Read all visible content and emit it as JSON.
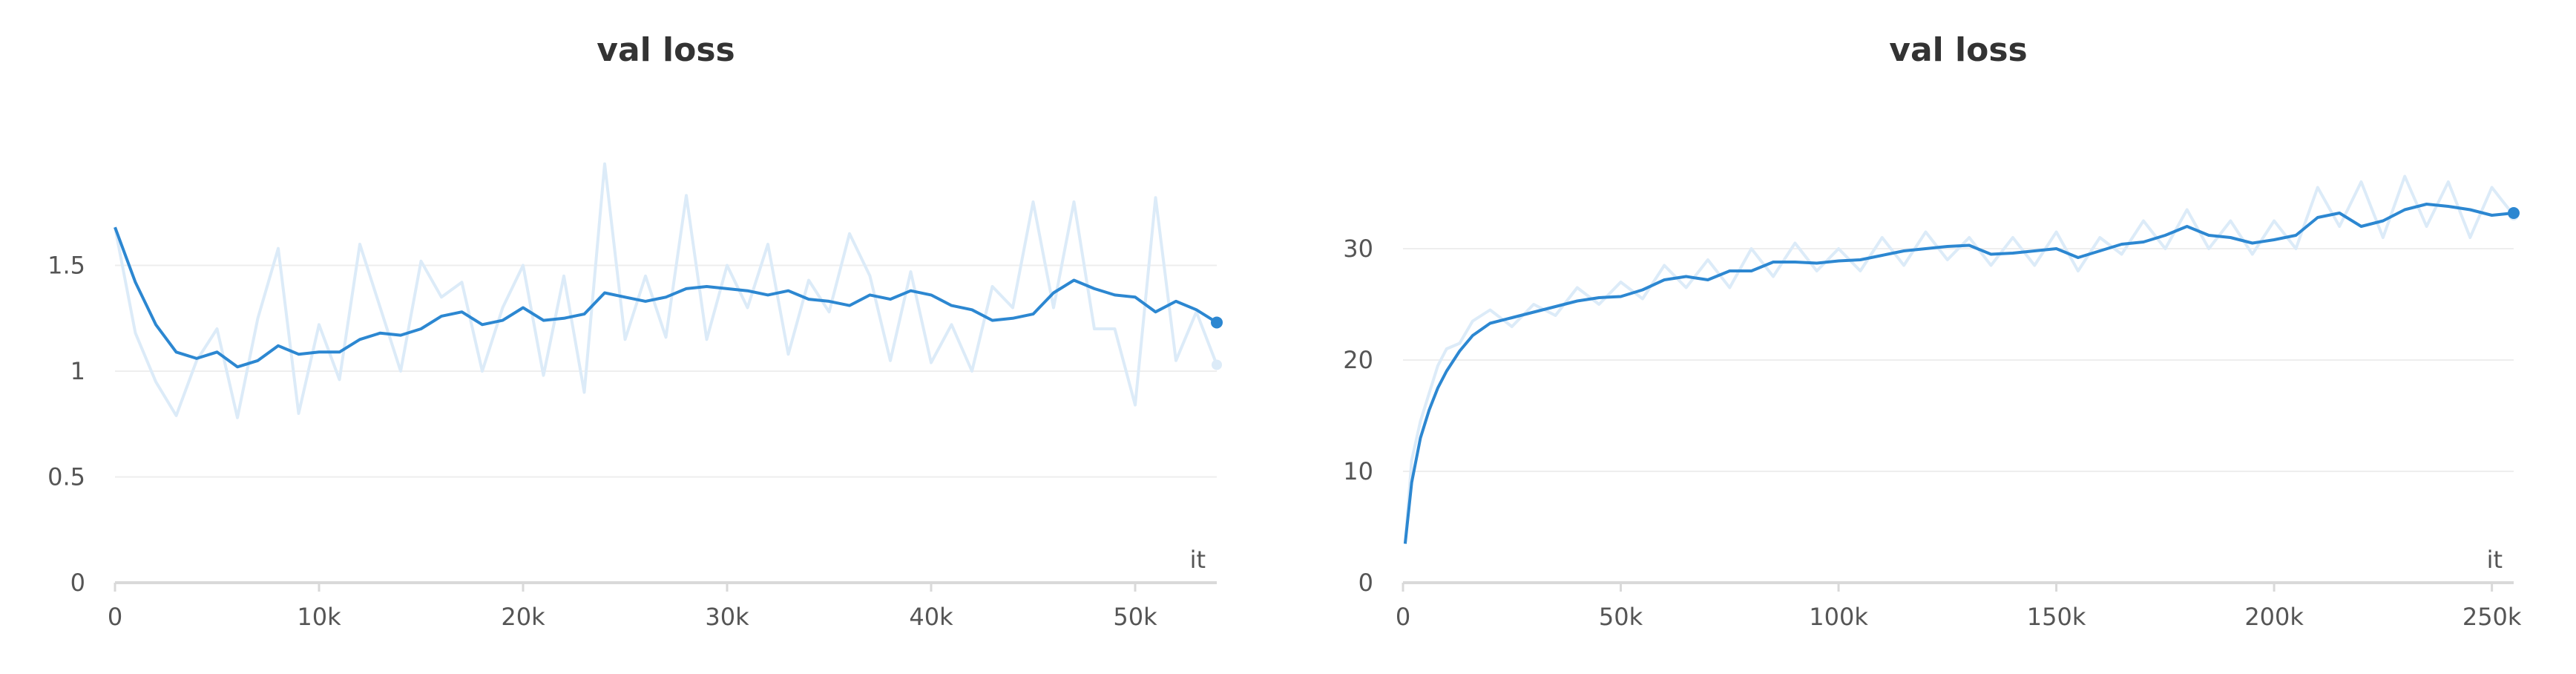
{
  "colors": {
    "line": "#2c87d1",
    "raw": "#dcebf8",
    "grid": "#eeeeee",
    "axis": "#d9d9d9",
    "text": "#555555",
    "title": "#333333"
  },
  "chart_data": [
    {
      "type": "line",
      "title": "val loss",
      "xlabel": "it",
      "ylabel": "",
      "xlim": [
        0,
        54000
      ],
      "ylim": [
        0,
        2.0
      ],
      "xticks": [
        0,
        10000,
        20000,
        30000,
        40000,
        50000
      ],
      "xtick_labels": [
        "0",
        "10k",
        "20k",
        "30k",
        "40k",
        "50k"
      ],
      "yticks": [
        0,
        0.5,
        1,
        1.5
      ],
      "ytick_labels": [
        "0",
        "0.5",
        "1",
        "1.5"
      ],
      "grid": true,
      "series": [
        {
          "role": "smoothed",
          "x": [
            0,
            1000,
            2000,
            3000,
            4000,
            5000,
            6000,
            7000,
            8000,
            9000,
            10000,
            11000,
            12000,
            13000,
            14000,
            15000,
            16000,
            17000,
            18000,
            19000,
            20000,
            21000,
            22000,
            23000,
            24000,
            25000,
            26000,
            27000,
            28000,
            29000,
            30000,
            31000,
            32000,
            33000,
            34000,
            35000,
            36000,
            37000,
            38000,
            39000,
            40000,
            41000,
            42000,
            43000,
            44000,
            45000,
            46000,
            47000,
            48000,
            49000,
            50000,
            51000,
            52000,
            53000,
            54000
          ],
          "y": [
            1.68,
            1.42,
            1.22,
            1.09,
            1.06,
            1.09,
            1.02,
            1.05,
            1.12,
            1.08,
            1.09,
            1.09,
            1.15,
            1.18,
            1.17,
            1.2,
            1.26,
            1.28,
            1.22,
            1.24,
            1.3,
            1.24,
            1.25,
            1.27,
            1.37,
            1.35,
            1.33,
            1.35,
            1.39,
            1.4,
            1.39,
            1.38,
            1.36,
            1.38,
            1.34,
            1.33,
            1.31,
            1.36,
            1.34,
            1.38,
            1.36,
            1.31,
            1.29,
            1.24,
            1.25,
            1.27,
            1.37,
            1.43,
            1.39,
            1.36,
            1.35,
            1.28,
            1.33,
            1.29,
            1.23
          ]
        },
        {
          "role": "raw",
          "x": [
            0,
            1000,
            2000,
            3000,
            4000,
            5000,
            6000,
            7000,
            8000,
            9000,
            10000,
            11000,
            12000,
            13000,
            14000,
            15000,
            16000,
            17000,
            18000,
            19000,
            20000,
            21000,
            22000,
            23000,
            24000,
            25000,
            26000,
            27000,
            28000,
            29000,
            30000,
            31000,
            32000,
            33000,
            34000,
            35000,
            36000,
            37000,
            38000,
            39000,
            40000,
            41000,
            42000,
            43000,
            44000,
            45000,
            46000,
            47000,
            48000,
            49000,
            50000,
            51000,
            52000,
            53000,
            54000
          ],
          "y": [
            1.68,
            1.18,
            0.95,
            0.79,
            1.05,
            1.2,
            0.78,
            1.25,
            1.58,
            0.8,
            1.22,
            0.96,
            1.6,
            1.3,
            1.0,
            1.52,
            1.35,
            1.42,
            1.0,
            1.3,
            1.5,
            0.98,
            1.45,
            0.9,
            1.98,
            1.15,
            1.45,
            1.16,
            1.83,
            1.15,
            1.5,
            1.3,
            1.6,
            1.08,
            1.43,
            1.28,
            1.65,
            1.45,
            1.05,
            1.47,
            1.04,
            1.22,
            1.0,
            1.4,
            1.3,
            1.8,
            1.3,
            1.8,
            1.2,
            1.2,
            0.84,
            1.82,
            1.05,
            1.28,
            1.03
          ]
        }
      ]
    },
    {
      "type": "line",
      "title": "val loss",
      "xlabel": "it",
      "ylabel": "",
      "xlim": [
        0,
        255000
      ],
      "ylim": [
        0,
        38
      ],
      "xticks": [
        0,
        50000,
        100000,
        150000,
        200000,
        250000
      ],
      "xtick_labels": [
        "0",
        "50k",
        "100k",
        "150k",
        "200k",
        "250k"
      ],
      "yticks": [
        0,
        10,
        20,
        30
      ],
      "ytick_labels": [
        "0",
        "10",
        "20",
        "30"
      ],
      "grid": true,
      "series": [
        {
          "role": "smoothed",
          "x": [
            500,
            2000,
            4000,
            6000,
            8000,
            10000,
            13000,
            16000,
            20000,
            25000,
            30000,
            35000,
            40000,
            45000,
            50000,
            55000,
            60000,
            65000,
            70000,
            75000,
            80000,
            85000,
            90000,
            95000,
            100000,
            105000,
            110000,
            115000,
            120000,
            125000,
            130000,
            135000,
            140000,
            145000,
            150000,
            155000,
            160000,
            165000,
            170000,
            175000,
            180000,
            185000,
            190000,
            195000,
            200000,
            205000,
            210000,
            215000,
            220000,
            225000,
            230000,
            235000,
            240000,
            245000,
            250000,
            255000
          ],
          "y": [
            3.5,
            9.0,
            13.0,
            15.5,
            17.5,
            19.0,
            20.8,
            22.2,
            23.3,
            23.8,
            24.3,
            24.8,
            25.3,
            25.6,
            25.7,
            26.3,
            27.2,
            27.5,
            27.2,
            28.0,
            28.0,
            28.8,
            28.8,
            28.7,
            28.9,
            29.0,
            29.4,
            29.8,
            30.0,
            30.2,
            30.3,
            29.5,
            29.6,
            29.8,
            30.0,
            29.2,
            29.8,
            30.4,
            30.6,
            31.2,
            32.0,
            31.2,
            31.0,
            30.5,
            30.8,
            31.2,
            32.8,
            33.2,
            32.0,
            32.5,
            33.5,
            34.0,
            33.8,
            33.5,
            33.0,
            33.2
          ]
        },
        {
          "role": "raw",
          "x": [
            500,
            2000,
            4000,
            6000,
            8000,
            10000,
            13000,
            16000,
            20000,
            25000,
            30000,
            35000,
            40000,
            45000,
            50000,
            55000,
            60000,
            65000,
            70000,
            75000,
            80000,
            85000,
            90000,
            95000,
            100000,
            105000,
            110000,
            115000,
            120000,
            125000,
            130000,
            135000,
            140000,
            145000,
            150000,
            155000,
            160000,
            165000,
            170000,
            175000,
            180000,
            185000,
            190000,
            195000,
            200000,
            205000,
            210000,
            215000,
            220000,
            225000,
            230000,
            235000,
            240000,
            245000,
            250000,
            255000
          ],
          "y": [
            3.5,
            11.0,
            14.5,
            17.0,
            19.5,
            21.0,
            21.5,
            23.5,
            24.5,
            23.0,
            25.0,
            24.0,
            26.5,
            25.0,
            27.0,
            25.5,
            28.5,
            26.5,
            29.0,
            26.5,
            30.0,
            27.5,
            30.5,
            28.0,
            30.0,
            28.0,
            31.0,
            28.5,
            31.5,
            29.0,
            31.0,
            28.5,
            31.0,
            28.5,
            31.5,
            28.0,
            31.0,
            29.5,
            32.5,
            30.0,
            33.5,
            30.0,
            32.5,
            29.5,
            32.5,
            30.0,
            35.5,
            32.0,
            36.0,
            31.0,
            36.5,
            32.0,
            36.0,
            31.0,
            35.5,
            33.0
          ]
        }
      ]
    }
  ]
}
